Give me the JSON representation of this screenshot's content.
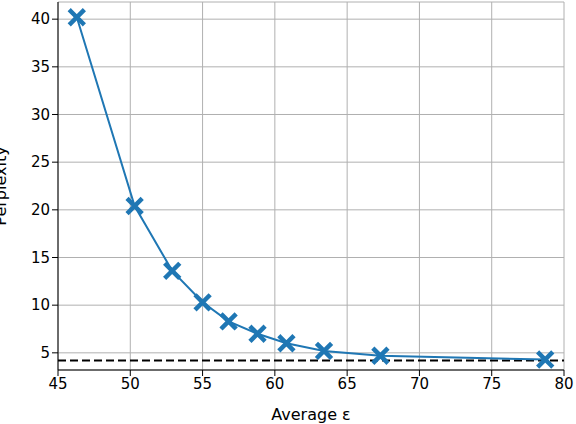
{
  "chart_data": {
    "type": "line",
    "x_label": "Average ε",
    "y_label": "Perplexity",
    "x": [
      46.3,
      50.3,
      52.9,
      55.0,
      56.8,
      58.8,
      60.8,
      63.4,
      67.3,
      78.7
    ],
    "values": [
      40.2,
      20.4,
      13.6,
      10.3,
      8.3,
      7.0,
      6.0,
      5.2,
      4.7,
      4.3
    ],
    "color": "#1f77b4",
    "marker": "X",
    "hline": 4.2,
    "xlim": [
      45,
      80
    ],
    "xticks": [
      45,
      50,
      55,
      60,
      65,
      70,
      75,
      80
    ],
    "ylim": [
      3.2,
      41.8
    ],
    "yticks": [
      5,
      10,
      15,
      20,
      25,
      30,
      35,
      40
    ],
    "grid": true
  }
}
